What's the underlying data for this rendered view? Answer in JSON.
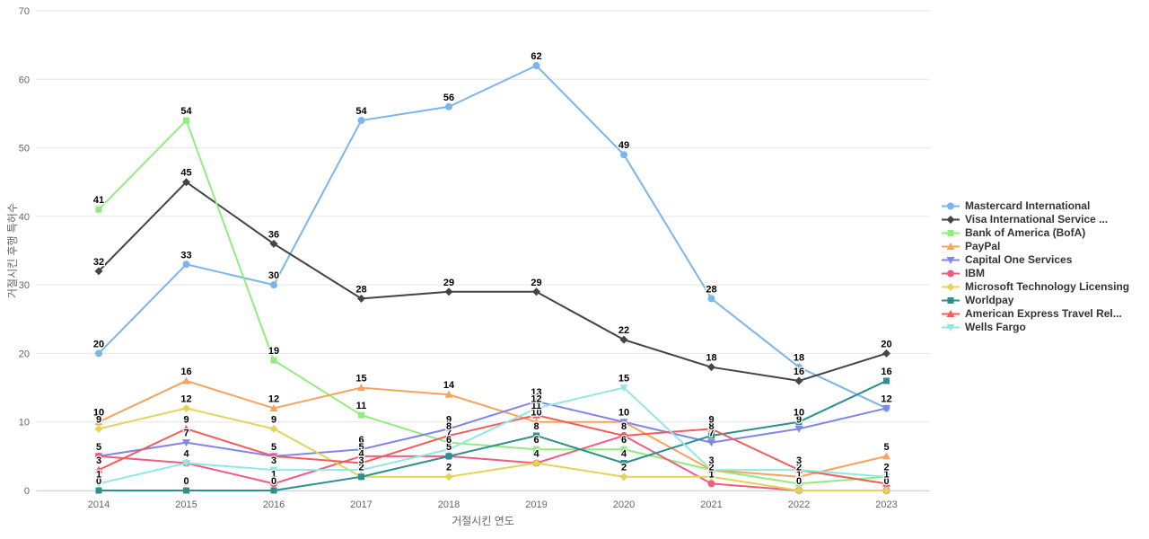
{
  "chart_data": {
    "type": "line",
    "title": "",
    "xlabel": "거절시킨 연도",
    "ylabel": "거절시킨 후행 특허수",
    "ylim": [
      0,
      70
    ],
    "y_ticks": [
      "0",
      "10",
      "20",
      "30",
      "40",
      "50",
      "60",
      "70"
    ],
    "categories": [
      "2014",
      "2015",
      "2016",
      "2017",
      "2018",
      "2019",
      "2020",
      "2021",
      "2022",
      "2023"
    ],
    "grid": "horizontal",
    "legend_position": "right",
    "axis_line_color": "#ccd6eb",
    "gridline_color": "#e6e6e6",
    "series": [
      {
        "name": "Mastercard International",
        "color": "#7cb5ec",
        "marker": "circle",
        "values": [
          20,
          33,
          30,
          54,
          56,
          62,
          49,
          28,
          18,
          12
        ]
      },
      {
        "name": "Visa International Service ...",
        "color": "#434348",
        "marker": "diamond",
        "values": [
          32,
          45,
          36,
          28,
          29,
          29,
          22,
          18,
          16,
          20
        ]
      },
      {
        "name": "Bank of America (BofA)",
        "color": "#90ed7d",
        "marker": "square",
        "values": [
          41,
          54,
          19,
          11,
          7,
          6,
          6,
          3,
          1,
          2
        ]
      },
      {
        "name": "PayPal",
        "color": "#f7a35c",
        "marker": "triangle",
        "values": [
          10,
          16,
          12,
          15,
          14,
          10,
          10,
          3,
          2,
          5
        ]
      },
      {
        "name": "Capital One Services",
        "color": "#8085e9",
        "marker": "triangle-down",
        "values": [
          5,
          7,
          5,
          6,
          9,
          13,
          10,
          7,
          9,
          12
        ]
      },
      {
        "name": "IBM",
        "color": "#f15c80",
        "marker": "circle",
        "values": [
          5,
          4,
          1,
          5,
          5,
          4,
          8,
          1,
          0,
          0
        ]
      },
      {
        "name": "Microsoft Technology Licensing",
        "color": "#e4d354",
        "marker": "diamond",
        "values": [
          9,
          12,
          9,
          2,
          2,
          4,
          2,
          2,
          0,
          0
        ]
      },
      {
        "name": "Worldpay",
        "color": "#2b908f",
        "marker": "square",
        "values": [
          0,
          0,
          0,
          2,
          5,
          8,
          4,
          8,
          10,
          16
        ]
      },
      {
        "name": "American Express Travel Rel...",
        "color": "#f45b5b",
        "marker": "triangle",
        "values": [
          3,
          9,
          5,
          4,
          8,
          11,
          8,
          9,
          3,
          1
        ]
      },
      {
        "name": "Wells Fargo",
        "color": "#91e8e1",
        "marker": "triangle-down",
        "values": [
          1,
          4,
          3,
          3,
          6,
          12,
          15,
          3,
          3,
          2
        ]
      }
    ]
  }
}
